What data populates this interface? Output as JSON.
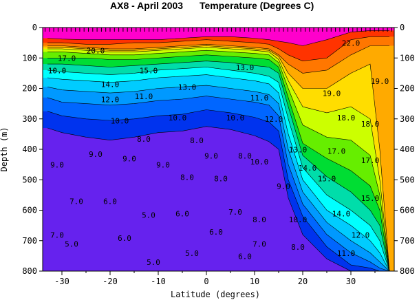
{
  "chart_data": {
    "type": "heatmap",
    "title_left": "AX8 - April 2003",
    "title_right": "Temperature (Degrees C)",
    "xlabel": "Latitude (degrees)",
    "ylabel": "Depth (m)",
    "xlim": [
      -34,
      39
    ],
    "ylim": [
      0,
      800
    ],
    "y_inverted": true,
    "x_ticks": [
      -30,
      -20,
      -10,
      0,
      10,
      20,
      30
    ],
    "y_ticks": [
      0,
      100,
      200,
      300,
      400,
      500,
      600,
      700,
      800
    ],
    "grid": false,
    "color_bands": [
      {
        "min": 24,
        "max": 30,
        "color": "#ff00cc"
      },
      {
        "min": 22,
        "max": 24,
        "color": "#ff3300"
      },
      {
        "min": 20,
        "max": 22,
        "color": "#ff7700"
      },
      {
        "min": 19,
        "max": 20,
        "color": "#ffaa00"
      },
      {
        "min": 18,
        "max": 19,
        "color": "#ffdd00"
      },
      {
        "min": 17,
        "max": 18,
        "color": "#ccff00"
      },
      {
        "min": 16,
        "max": 17,
        "color": "#66ee00"
      },
      {
        "min": 15,
        "max": 16,
        "color": "#00dd33"
      },
      {
        "min": 14,
        "max": 15,
        "color": "#00ddaa"
      },
      {
        "min": 13,
        "max": 14,
        "color": "#00ffff"
      },
      {
        "min": 12,
        "max": 13,
        "color": "#00ccff"
      },
      {
        "min": 11,
        "max": 12,
        "color": "#0099ff"
      },
      {
        "min": 10,
        "max": 11,
        "color": "#0066ff"
      },
      {
        "min": 9,
        "max": 10,
        "color": "#0033ee"
      },
      {
        "min": 0,
        "max": 9,
        "color": "#6622ee"
      }
    ],
    "isotherm_depths": {
      "latitudes": [
        -33,
        -30,
        -25,
        -20,
        -15,
        -10,
        -5,
        0,
        5,
        10,
        13,
        15,
        17,
        20,
        25,
        30,
        34,
        36,
        38
      ],
      "levels": [
        {
          "temp": 24,
          "depths": [
            35,
            38,
            40,
            40,
            40,
            40,
            35,
            30,
            30,
            35,
            40,
            45,
            50,
            60,
            40,
            15,
            10,
            10,
            10
          ]
        },
        {
          "temp": 22,
          "depths": [
            50,
            50,
            55,
            55,
            50,
            50,
            45,
            40,
            45,
            50,
            55,
            70,
            90,
            110,
            100,
            40,
            30,
            30,
            30
          ]
        },
        {
          "temp": 20,
          "depths": [
            60,
            60,
            65,
            70,
            70,
            65,
            60,
            55,
            60,
            65,
            70,
            90,
            120,
            150,
            140,
            90,
            60,
            60,
            60
          ]
        },
        {
          "temp": 19,
          "depths": [
            65,
            65,
            70,
            75,
            75,
            70,
            65,
            60,
            65,
            70,
            75,
            95,
            150,
            200,
            200,
            150,
            120,
            400,
            800
          ]
        },
        {
          "temp": 18,
          "depths": [
            70,
            70,
            75,
            80,
            80,
            75,
            70,
            65,
            70,
            75,
            80,
            105,
            175,
            260,
            280,
            260,
            300,
            500,
            800
          ]
        },
        {
          "temp": 17,
          "depths": [
            80,
            80,
            85,
            90,
            90,
            85,
            80,
            75,
            80,
            85,
            90,
            115,
            200,
            320,
            360,
            370,
            420,
            550,
            800
          ]
        },
        {
          "temp": 16,
          "depths": [
            100,
            100,
            100,
            105,
            105,
            100,
            95,
            90,
            95,
            100,
            105,
            130,
            230,
            380,
            430,
            470,
            520,
            600,
            800
          ]
        },
        {
          "temp": 15,
          "depths": [
            120,
            120,
            125,
            130,
            125,
            120,
            115,
            110,
            115,
            125,
            130,
            150,
            260,
            420,
            490,
            540,
            600,
            650,
            800
          ]
        },
        {
          "temp": 14,
          "depths": [
            140,
            145,
            150,
            155,
            150,
            140,
            135,
            130,
            140,
            150,
            160,
            180,
            300,
            460,
            550,
            600,
            650,
            700,
            800
          ]
        },
        {
          "temp": 13,
          "depths": [
            165,
            170,
            175,
            180,
            175,
            165,
            160,
            155,
            165,
            175,
            185,
            215,
            350,
            500,
            600,
            650,
            700,
            740,
            800
          ]
        },
        {
          "temp": 12,
          "depths": [
            195,
            205,
            210,
            215,
            210,
            200,
            195,
            190,
            200,
            210,
            220,
            250,
            400,
            540,
            640,
            700,
            740,
            770,
            800
          ]
        },
        {
          "temp": 11,
          "depths": [
            230,
            245,
            250,
            255,
            250,
            240,
            235,
            225,
            235,
            245,
            255,
            290,
            450,
            580,
            680,
            740,
            770,
            790,
            800
          ]
        },
        {
          "temp": 10,
          "depths": [
            275,
            290,
            300,
            305,
            300,
            290,
            285,
            270,
            280,
            295,
            310,
            340,
            500,
            620,
            720,
            780,
            790,
            800,
            800
          ]
        },
        {
          "temp": 9,
          "depths": [
            330,
            345,
            360,
            370,
            360,
            345,
            340,
            325,
            335,
            355,
            375,
            400,
            560,
            680,
            760,
            800,
            800,
            800,
            800
          ]
        }
      ]
    },
    "contour_labels": [
      {
        "text": "20.0",
        "lat": -23,
        "depth": 85
      },
      {
        "text": "17.0",
        "lat": -29,
        "depth": 110
      },
      {
        "text": "15.0",
        "lat": -12,
        "depth": 150
      },
      {
        "text": "14.0",
        "lat": -20,
        "depth": 195
      },
      {
        "text": "13.0",
        "lat": -4,
        "depth": 205
      },
      {
        "text": "13.0",
        "lat": 8,
        "depth": 140
      },
      {
        "text": "12.0",
        "lat": -20,
        "depth": 245
      },
      {
        "text": "11.0",
        "lat": -13,
        "depth": 235
      },
      {
        "text": "11.0",
        "lat": 11,
        "depth": 240
      },
      {
        "text": "10.0",
        "lat": -18,
        "depth": 315
      },
      {
        "text": "10.0",
        "lat": -6,
        "depth": 305
      },
      {
        "text": "10.0",
        "lat": 6,
        "depth": 305
      },
      {
        "text": "10.0",
        "lat": 11,
        "depth": 450
      },
      {
        "text": "12.0",
        "lat": 14,
        "depth": 310
      },
      {
        "text": "8.0",
        "lat": -13,
        "depth": 375
      },
      {
        "text": "8.0",
        "lat": -2,
        "depth": 380
      },
      {
        "text": "9.0",
        "lat": -23,
        "depth": 425
      },
      {
        "text": "9.0",
        "lat": -16,
        "depth": 440
      },
      {
        "text": "9.0",
        "lat": -9,
        "depth": 460
      },
      {
        "text": "9.0",
        "lat": 1,
        "depth": 430
      },
      {
        "text": "8.0",
        "lat": 8,
        "depth": 430
      },
      {
        "text": "8.0",
        "lat": -4,
        "depth": 500
      },
      {
        "text": "8.0",
        "lat": 3,
        "depth": 505
      },
      {
        "text": "9.0",
        "lat": -31,
        "depth": 460
      },
      {
        "text": "9.0",
        "lat": 16,
        "depth": 530
      },
      {
        "text": "7.0",
        "lat": -27,
        "depth": 580
      },
      {
        "text": "6.0",
        "lat": -20,
        "depth": 580
      },
      {
        "text": "6.0",
        "lat": -5,
        "depth": 620
      },
      {
        "text": "5.0",
        "lat": -12,
        "depth": 625
      },
      {
        "text": "7.0",
        "lat": 6,
        "depth": 615
      },
      {
        "text": "6.0",
        "lat": 2,
        "depth": 680
      },
      {
        "text": "8.0",
        "lat": 11,
        "depth": 640
      },
      {
        "text": "10.0",
        "lat": 19,
        "depth": 640
      },
      {
        "text": "7.0",
        "lat": -31,
        "depth": 690
      },
      {
        "text": "6.0",
        "lat": -17,
        "depth": 700
      },
      {
        "text": "5.0",
        "lat": -28,
        "depth": 720
      },
      {
        "text": "5.0",
        "lat": -3,
        "depth": 750
      },
      {
        "text": "6.0",
        "lat": 8,
        "depth": 760
      },
      {
        "text": "7.0",
        "lat": 11,
        "depth": 720
      },
      {
        "text": "8.0",
        "lat": 19,
        "depth": 730
      },
      {
        "text": "5.0",
        "lat": -11,
        "depth": 780
      },
      {
        "text": "19.0",
        "lat": 26,
        "depth": 225
      },
      {
        "text": "19.0",
        "lat": 36,
        "depth": 185
      },
      {
        "text": "18.0",
        "lat": 29,
        "depth": 305
      },
      {
        "text": "18.0",
        "lat": 34,
        "depth": 325
      },
      {
        "text": "17.0",
        "lat": 27,
        "depth": 415
      },
      {
        "text": "17.0",
        "lat": 34,
        "depth": 445
      },
      {
        "text": "15.0",
        "lat": 25,
        "depth": 505
      },
      {
        "text": "15.0",
        "lat": 34,
        "depth": 570
      },
      {
        "text": "14.0",
        "lat": 21,
        "depth": 470
      },
      {
        "text": "14.0",
        "lat": 28,
        "depth": 620
      },
      {
        "text": "12.0",
        "lat": 32,
        "depth": 690
      },
      {
        "text": "11.0",
        "lat": 29,
        "depth": 750
      },
      {
        "text": "22.0",
        "lat": 30,
        "depth": 60
      },
      {
        "text": "13.0",
        "lat": 19,
        "depth": 410
      },
      {
        "text": "10.0",
        "lat": -31,
        "depth": 150
      }
    ]
  }
}
